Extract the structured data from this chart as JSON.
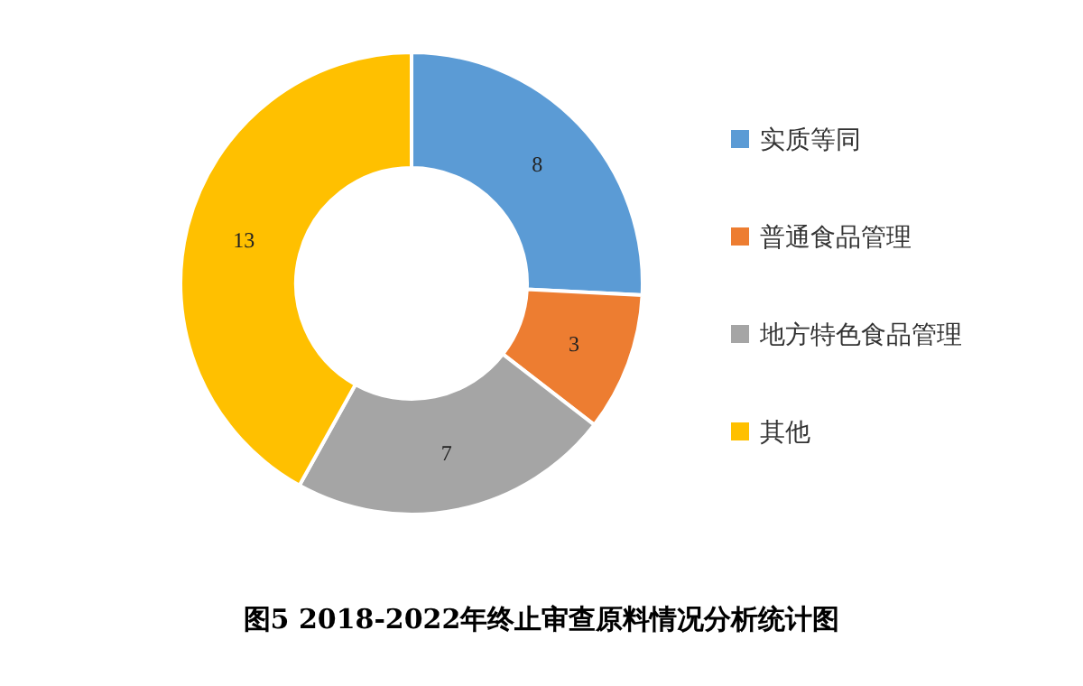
{
  "chart_data": {
    "type": "donut",
    "title": "图5 2018-2022年终止审查原料情况分析统计图",
    "categories": [
      "实质等同",
      "普通食品管理",
      "地方特色食品管理",
      "其他"
    ],
    "values": [
      8,
      3,
      7,
      13
    ],
    "colors": [
      "#5b9bd5",
      "#ed7d31",
      "#a5a5a5",
      "#ffc000"
    ],
    "data_labels": true,
    "legend": "right"
  }
}
